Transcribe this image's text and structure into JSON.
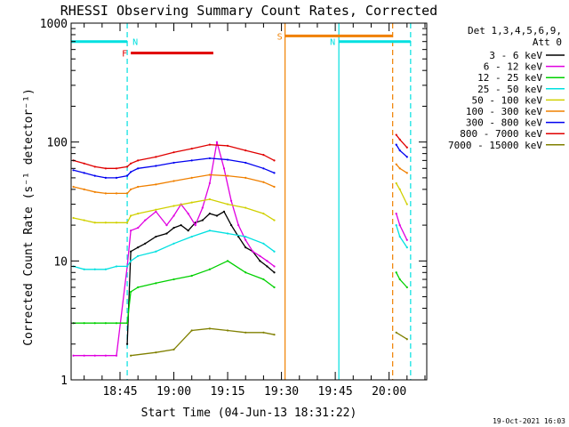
{
  "chart_data": {
    "type": "line",
    "title": "RHESSI Observing Summary Count Rates, Corrected",
    "xlabel": "Start Time (04-Jun-13 18:31:22)",
    "ylabel": "Corrected Count Rate (s⁻¹ detector⁻¹)",
    "y_scale": "log",
    "ylim": [
      1,
      1000
    ],
    "xlim": [
      "18:31:22",
      "20:10:30"
    ],
    "x_ticks": [
      "18:45",
      "19:00",
      "19:15",
      "19:30",
      "19:45",
      "20:00"
    ],
    "y_tick_labels": [
      "1",
      "10",
      "100",
      "1000"
    ],
    "footer": "19-Oct-2021 16:03",
    "legend": {
      "position": "right",
      "title_line1": "Det 1,3,4,5,6,9,",
      "title_line2": "Att 0"
    },
    "series": [
      {
        "name": "3 - 6 keV",
        "color": "#000000",
        "x": [
          "18:47",
          "18:48",
          "18:50",
          "18:52",
          "18:55",
          "18:58",
          "19:00",
          "19:02",
          "19:04",
          "19:06",
          "19:08",
          "19:10",
          "19:12",
          "19:14",
          "19:16",
          "19:18",
          "19:20",
          "19:22",
          "19:24",
          "19:26",
          "19:28"
        ],
        "values": [
          2,
          12,
          13,
          14,
          16,
          17,
          19,
          20,
          18,
          21,
          22,
          25,
          24,
          26,
          20,
          16,
          13,
          12,
          10,
          9,
          8
        ]
      },
      {
        "name": "6 - 12 keV",
        "color": "#e000e0",
        "x": [
          "18:32",
          "18:35",
          "18:38",
          "18:41",
          "18:44",
          "18:47",
          "18:48",
          "18:50",
          "18:52",
          "18:55",
          "18:58",
          "19:00",
          "19:02",
          "19:04",
          "19:06",
          "19:08",
          "19:10",
          "19:12",
          "19:14",
          "19:16",
          "19:18",
          "19:20",
          "19:22",
          "19:24",
          "19:26",
          "19:28",
          "20:02",
          "20:03",
          "20:05"
        ],
        "values": [
          1.6,
          1.6,
          1.6,
          1.6,
          1.6,
          9,
          18,
          19,
          22,
          26,
          20,
          24,
          30,
          25,
          20,
          28,
          45,
          100,
          60,
          32,
          20,
          15,
          12,
          11,
          10,
          9,
          25,
          20,
          15
        ]
      },
      {
        "name": "12 - 25 keV",
        "color": "#00d000",
        "x": [
          "18:32",
          "18:35",
          "18:38",
          "18:41",
          "18:44",
          "18:47",
          "18:48",
          "18:50",
          "18:55",
          "19:00",
          "19:05",
          "19:10",
          "19:15",
          "19:20",
          "19:25",
          "19:28",
          "20:02",
          "20:03",
          "20:05"
        ],
        "values": [
          3,
          3,
          3,
          3,
          3,
          3,
          5.5,
          6,
          6.5,
          7,
          7.5,
          8.5,
          10,
          8,
          7,
          6,
          8,
          7,
          6
        ]
      },
      {
        "name": "25 - 50 keV",
        "color": "#00e0e0",
        "x": [
          "18:32",
          "18:35",
          "18:38",
          "18:41",
          "18:44",
          "18:47",
          "18:48",
          "18:50",
          "18:55",
          "19:00",
          "19:05",
          "19:10",
          "19:15",
          "19:20",
          "19:25",
          "19:28",
          "20:02",
          "20:03",
          "20:05"
        ],
        "values": [
          9,
          8.5,
          8.5,
          8.5,
          9,
          9,
          10,
          11,
          12,
          14,
          16,
          18,
          17,
          16,
          14,
          12,
          20,
          16,
          13
        ]
      },
      {
        "name": "50 - 100 keV",
        "color": "#d0d000",
        "x": [
          "18:32",
          "18:35",
          "18:38",
          "18:41",
          "18:44",
          "18:47",
          "18:48",
          "18:50",
          "18:55",
          "19:00",
          "19:05",
          "19:10",
          "19:15",
          "19:20",
          "19:25",
          "19:28",
          "20:02",
          "20:03",
          "20:05"
        ],
        "values": [
          23,
          22,
          21,
          21,
          21,
          21,
          24,
          25,
          27,
          29,
          31,
          33,
          30,
          28,
          25,
          22,
          45,
          40,
          30
        ]
      },
      {
        "name": "100 - 300 keV",
        "color": "#f08000",
        "x": [
          "18:32",
          "18:35",
          "18:38",
          "18:41",
          "18:44",
          "18:47",
          "18:48",
          "18:50",
          "18:55",
          "19:00",
          "19:05",
          "19:10",
          "19:15",
          "19:20",
          "19:25",
          "19:28",
          "20:02",
          "20:03",
          "20:05"
        ],
        "values": [
          42,
          40,
          38,
          37,
          37,
          37,
          40,
          42,
          44,
          47,
          50,
          53,
          52,
          50,
          46,
          42,
          65,
          60,
          55
        ]
      },
      {
        "name": "300 - 800 keV",
        "color": "#0000f0",
        "x": [
          "18:32",
          "18:35",
          "18:38",
          "18:41",
          "18:44",
          "18:47",
          "18:48",
          "18:50",
          "18:55",
          "19:00",
          "19:05",
          "19:10",
          "19:15",
          "19:20",
          "19:25",
          "19:28",
          "20:02",
          "20:03",
          "20:05"
        ],
        "values": [
          58,
          55,
          52,
          50,
          50,
          52,
          56,
          60,
          63,
          67,
          70,
          73,
          71,
          67,
          60,
          55,
          95,
          85,
          75
        ]
      },
      {
        "name": "800 - 7000 keV",
        "color": "#e00000",
        "x": [
          "18:32",
          "18:35",
          "18:38",
          "18:41",
          "18:44",
          "18:47",
          "18:48",
          "18:50",
          "18:55",
          "19:00",
          "19:05",
          "19:10",
          "19:15",
          "19:20",
          "19:25",
          "19:28",
          "20:02",
          "20:03",
          "20:05"
        ],
        "values": [
          70,
          66,
          62,
          60,
          60,
          62,
          66,
          70,
          75,
          82,
          88,
          95,
          93,
          85,
          78,
          70,
          115,
          105,
          90
        ]
      },
      {
        "name": "7000 - 15000 keV",
        "color": "#808000",
        "x": [
          "18:48",
          "18:55",
          "19:00",
          "19:05",
          "19:10",
          "19:15",
          "19:20",
          "19:25",
          "19:28",
          "20:02",
          "20:05"
        ],
        "values": [
          1.6,
          1.7,
          1.8,
          2.6,
          2.7,
          2.6,
          2.5,
          2.5,
          2.4,
          2.5,
          2.2
        ]
      }
    ],
    "annotations": [
      {
        "label": "N",
        "color": "#00e0e0",
        "x_start": "18:31:22",
        "x_end": "18:47",
        "y": 700
      },
      {
        "label": "N",
        "color": "#00e0e0",
        "x_start": "19:46",
        "x_end": "20:06",
        "y": 700
      },
      {
        "label": "F",
        "color": "#e00000",
        "x_start": "18:48",
        "x_end": "19:11",
        "y": 560
      },
      {
        "label": "S",
        "color": "#f08000",
        "x_start": "19:31",
        "x_end": "20:01",
        "y": 780
      }
    ],
    "vlines": [
      {
        "x": "18:47",
        "color": "#00e0e0",
        "style": "dashed"
      },
      {
        "x": "19:31",
        "color": "#f08000",
        "style": "solid"
      },
      {
        "x": "19:46",
        "color": "#00e0e0",
        "style": "solid"
      },
      {
        "x": "20:01",
        "color": "#f08000",
        "style": "dashed"
      },
      {
        "x": "20:06",
        "color": "#00e0e0",
        "style": "dashed"
      }
    ]
  }
}
